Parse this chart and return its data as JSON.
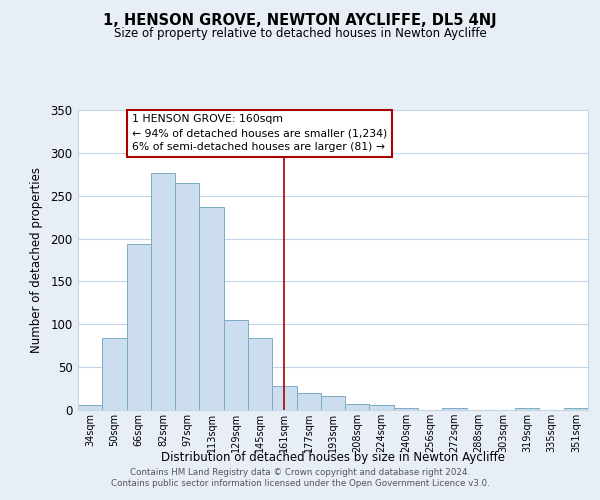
{
  "title": "1, HENSON GROVE, NEWTON AYCLIFFE, DL5 4NJ",
  "subtitle": "Size of property relative to detached houses in Newton Aycliffe",
  "xlabel": "Distribution of detached houses by size in Newton Aycliffe",
  "ylabel": "Number of detached properties",
  "bar_labels": [
    "34sqm",
    "50sqm",
    "66sqm",
    "82sqm",
    "97sqm",
    "113sqm",
    "129sqm",
    "145sqm",
    "161sqm",
    "177sqm",
    "193sqm",
    "208sqm",
    "224sqm",
    "240sqm",
    "256sqm",
    "272sqm",
    "288sqm",
    "303sqm",
    "319sqm",
    "335sqm",
    "351sqm"
  ],
  "bar_values": [
    6,
    84,
    194,
    276,
    265,
    237,
    105,
    84,
    28,
    20,
    16,
    7,
    6,
    2,
    0,
    2,
    0,
    0,
    2,
    0,
    2
  ],
  "bar_color": "#ccddef",
  "bar_edge_color": "#7bacc4",
  "vline_x": 8,
  "vline_color": "#aa0000",
  "annotation_title": "1 HENSON GROVE: 160sqm",
  "annotation_line1": "← 94% of detached houses are smaller (1,234)",
  "annotation_line2": "6% of semi-detached houses are larger (81) →",
  "annotation_box_color": "#ffffff",
  "annotation_border_color": "#aa0000",
  "ylim": [
    0,
    350
  ],
  "yticks": [
    0,
    50,
    100,
    150,
    200,
    250,
    300,
    350
  ],
  "footer1": "Contains HM Land Registry data © Crown copyright and database right 2024.",
  "footer2": "Contains public sector information licensed under the Open Government Licence v3.0.",
  "bg_color": "#e8eef5",
  "plot_bg_color": "#ffffff",
  "grid_color": "#c5d5e5"
}
